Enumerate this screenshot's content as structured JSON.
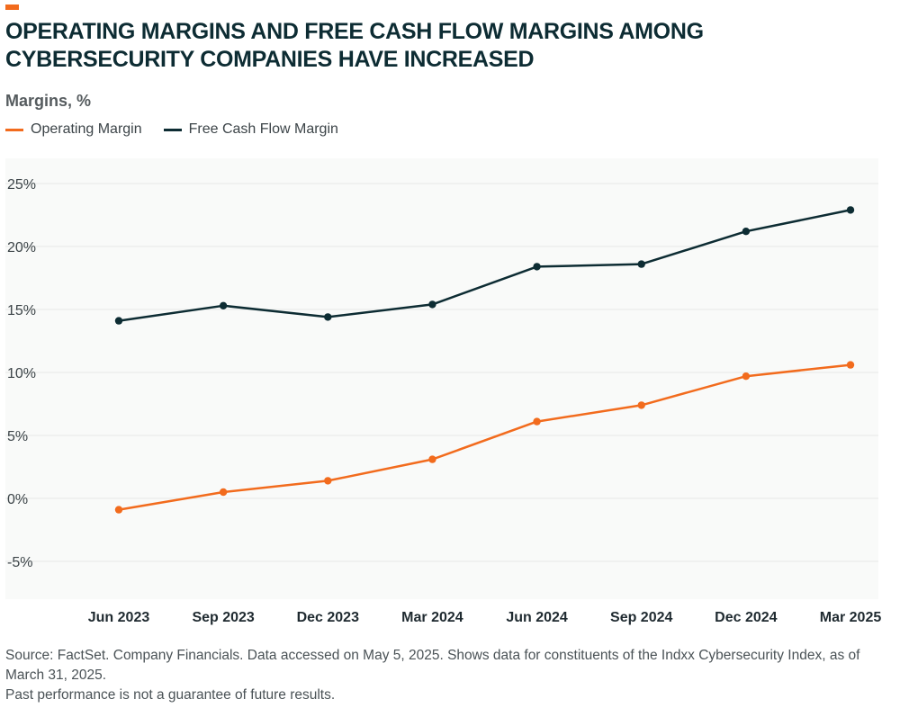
{
  "header": {
    "title": "OPERATING MARGINS AND FREE CASH FLOW MARGINS AMONG CYBERSECURITY COMPANIES HAVE INCREASED",
    "subtitle": "Margins, %"
  },
  "colors": {
    "accent": "#f26b1d",
    "operating": "#f26b1d",
    "fcf": "#0d2c33",
    "plot_bg": "#f9faf9",
    "grid": "#e6e8e6"
  },
  "chart_data": {
    "type": "line",
    "categories": [
      "Jun 2023",
      "Sep 2023",
      "Dec 2023",
      "Mar 2024",
      "Jun 2024",
      "Sep 2024",
      "Dec 2024",
      "Mar 2025"
    ],
    "series": [
      {
        "name": "Operating Margin",
        "values": [
          -0.9,
          0.5,
          1.4,
          3.1,
          6.1,
          7.4,
          9.7,
          10.6
        ]
      },
      {
        "name": "Free Cash Flow Margin",
        "values": [
          14.1,
          15.3,
          14.4,
          15.4,
          18.4,
          18.6,
          21.2,
          22.9
        ]
      }
    ],
    "ylim": [
      -8,
      27
    ],
    "yticks": [
      25,
      20,
      15,
      10,
      5,
      0,
      -5
    ],
    "ytick_labels": [
      "25%",
      "20%",
      "15%",
      "10%",
      "5%",
      "0%",
      "-5%"
    ],
    "grid": true,
    "legend": "top-left",
    "xlabel": "",
    "ylabel": "Margins, %"
  },
  "footer": {
    "source": "Source: FactSet. Company Financials. Data accessed on May 5, 2025. Shows data for constituents of the Indxx Cybersecurity Index, as of March 31, 2025.",
    "disclaimer": "Past performance is not a guarantee of future results."
  }
}
